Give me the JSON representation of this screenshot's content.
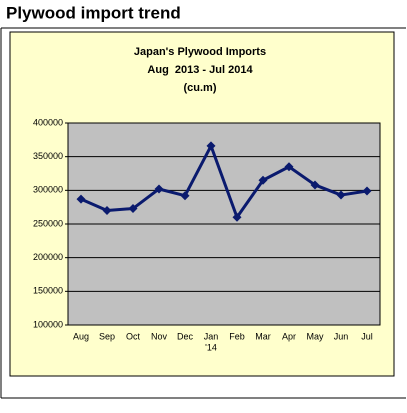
{
  "heading": "Plywood import trend",
  "chart_data": {
    "type": "line",
    "title": "Japan's Plywood Imports",
    "subtitle": "Aug  2013 - Jul 2014",
    "unit": "(cu.m)",
    "categories": [
      "Aug",
      "Sep",
      "Oct",
      "Nov",
      "Dec",
      "Jan",
      "Feb",
      "Mar",
      "Apr",
      "May",
      "Jun",
      "Jul"
    ],
    "annotations": [
      {
        "category": 5,
        "text": "'14"
      }
    ],
    "series": [
      {
        "color": "#0a1a6e",
        "values": [
          287000,
          270000,
          273000,
          302000,
          292000,
          366000,
          260000,
          315000,
          335000,
          308000,
          293000,
          299000
        ]
      }
    ],
    "ylim": [
      100000,
      400000
    ],
    "yticks": [
      100000,
      150000,
      200000,
      250000,
      300000,
      350000,
      400000
    ],
    "grid": true,
    "plot_background": "#c0c0c0",
    "panel_background": "#ffffcc"
  }
}
